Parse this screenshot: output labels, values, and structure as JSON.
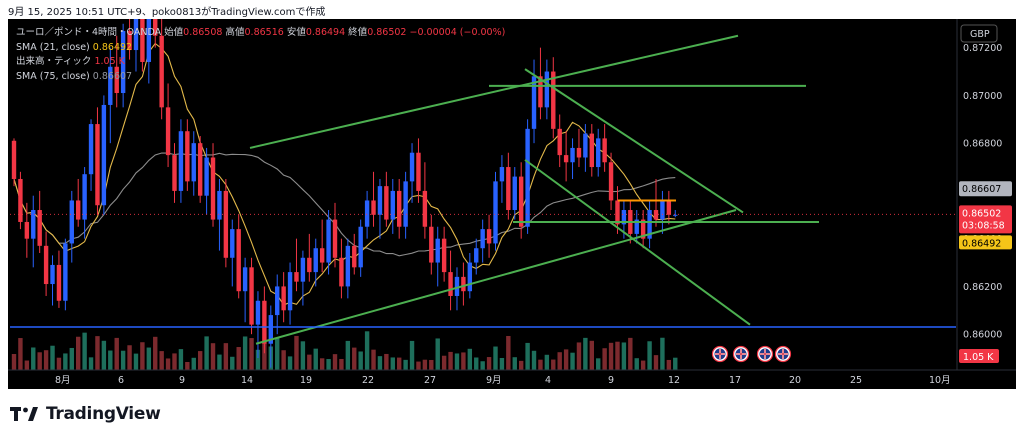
{
  "caption": "9月 15, 2025 10:51 UTC+9、poko0813がTradingView.comで作成",
  "legend": {
    "symbol": "ユーロ／ポンド・4時間・OANDA",
    "open_label": "始値",
    "open_value": "0.86508",
    "high_label": "高値",
    "high_value": "0.86516",
    "low_label": "安値",
    "low_value": "0.86494",
    "close_label": "終値",
    "close_value": "0.86502",
    "change": "−0.00004 (−0.00%)",
    "sma21_label": "SMA (21, close)",
    "sma21_value": "0.86492",
    "volume_label": "出来高・ティック",
    "volume_value": "1.05 K",
    "sma75_label": "SMA (75, close)",
    "sma75_value": "0.86607"
  },
  "currency_badge": "GBP",
  "price_tags": {
    "sma75": "0.86607",
    "last_price": "0.86502",
    "countdown": "03:08:58",
    "sma21": "0.86492",
    "volume": "1.05 K"
  },
  "footer_logo_text": "TradingView",
  "colors": {
    "bull": "#2962ff",
    "bear": "#f23645",
    "sma21": "#e3b94a",
    "sma75": "#8c8c8c",
    "trendline": "#4caf50",
    "support": "#2962ff",
    "orange_level": "#ff9800",
    "background": "#000000"
  },
  "chart_data": {
    "type": "candlestick",
    "symbol": "ユーロ／ポンド",
    "timeframe": "4時間",
    "y_axis": {
      "ticks": [
        "0.87200",
        "0.87000",
        "0.86800",
        "0.86600",
        "0.86400",
        "0.86200",
        "0.86000"
      ],
      "ylim": [
        0.8585,
        0.8732
      ]
    },
    "x_axis": {
      "ticks": [
        "8月",
        "6",
        "9",
        "14",
        "19",
        "22",
        "27",
        "9月",
        "4",
        "9",
        "12",
        "17",
        "20",
        "25",
        "10月"
      ]
    },
    "candles": [
      [
        0.8681,
        0.8682,
        0.8662,
        0.8665
      ],
      [
        0.8665,
        0.8668,
        0.8644,
        0.8647
      ],
      [
        0.8647,
        0.8655,
        0.8632,
        0.864
      ],
      [
        0.864,
        0.8658,
        0.8628,
        0.8652
      ],
      [
        0.8652,
        0.866,
        0.8634,
        0.8637
      ],
      [
        0.8637,
        0.8643,
        0.8616,
        0.8621
      ],
      [
        0.8621,
        0.8633,
        0.8612,
        0.8629
      ],
      [
        0.8629,
        0.8635,
        0.8611,
        0.8614
      ],
      [
        0.8614,
        0.864,
        0.861,
        0.8638
      ],
      [
        0.8638,
        0.866,
        0.863,
        0.8656
      ],
      [
        0.8656,
        0.8665,
        0.8645,
        0.8648
      ],
      [
        0.8648,
        0.867,
        0.864,
        0.8667
      ],
      [
        0.8667,
        0.869,
        0.866,
        0.8688
      ],
      [
        0.8688,
        0.8695,
        0.865,
        0.8654
      ],
      [
        0.8654,
        0.87,
        0.865,
        0.8696
      ],
      [
        0.8696,
        0.872,
        0.868,
        0.8712
      ],
      [
        0.8712,
        0.8725,
        0.8695,
        0.8701
      ],
      [
        0.8701,
        0.873,
        0.8695,
        0.8727
      ],
      [
        0.8727,
        0.874,
        0.8715,
        0.8719
      ],
      [
        0.8719,
        0.8745,
        0.871,
        0.874
      ],
      [
        0.874,
        0.875,
        0.871,
        0.8714
      ],
      [
        0.8714,
        0.874,
        0.8705,
        0.8736
      ],
      [
        0.8736,
        0.875,
        0.872,
        0.8725
      ],
      [
        0.8725,
        0.874,
        0.869,
        0.8695
      ],
      [
        0.8695,
        0.8705,
        0.867,
        0.8675
      ],
      [
        0.8675,
        0.868,
        0.8655,
        0.866
      ],
      [
        0.866,
        0.869,
        0.8655,
        0.8685
      ],
      [
        0.8685,
        0.869,
        0.866,
        0.8664
      ],
      [
        0.8664,
        0.8685,
        0.8658,
        0.868
      ],
      [
        0.868,
        0.8683,
        0.8655,
        0.8658
      ],
      [
        0.8658,
        0.8678,
        0.865,
        0.8674
      ],
      [
        0.8674,
        0.868,
        0.8645,
        0.8648
      ],
      [
        0.8648,
        0.8665,
        0.8635,
        0.866
      ],
      [
        0.866,
        0.8665,
        0.8628,
        0.8632
      ],
      [
        0.8632,
        0.8648,
        0.862,
        0.8644
      ],
      [
        0.8644,
        0.865,
        0.8615,
        0.8618
      ],
      [
        0.8618,
        0.8632,
        0.8605,
        0.8628
      ],
      [
        0.8628,
        0.8632,
        0.86,
        0.8604
      ],
      [
        0.8604,
        0.8618,
        0.859,
        0.8614
      ],
      [
        0.8614,
        0.862,
        0.8592,
        0.8596
      ],
      [
        0.8596,
        0.8612,
        0.8586,
        0.8608
      ],
      [
        0.8608,
        0.8625,
        0.86,
        0.862
      ],
      [
        0.862,
        0.8626,
        0.8605,
        0.861
      ],
      [
        0.861,
        0.863,
        0.8604,
        0.8626
      ],
      [
        0.8626,
        0.864,
        0.8618,
        0.8622
      ],
      [
        0.8622,
        0.8635,
        0.8612,
        0.8632
      ],
      [
        0.8632,
        0.8642,
        0.8622,
        0.8626
      ],
      [
        0.8626,
        0.864,
        0.862,
        0.8636
      ],
      [
        0.8636,
        0.8648,
        0.8626,
        0.863
      ],
      [
        0.863,
        0.8652,
        0.8625,
        0.8648
      ],
      [
        0.8648,
        0.8655,
        0.8628,
        0.8632
      ],
      [
        0.8632,
        0.864,
        0.8615,
        0.862
      ],
      [
        0.862,
        0.864,
        0.8615,
        0.8637
      ],
      [
        0.8637,
        0.8642,
        0.8625,
        0.8628
      ],
      [
        0.8628,
        0.8648,
        0.8624,
        0.8645
      ],
      [
        0.8645,
        0.866,
        0.864,
        0.8656
      ],
      [
        0.8656,
        0.8668,
        0.8645,
        0.865
      ],
      [
        0.865,
        0.8665,
        0.864,
        0.8662
      ],
      [
        0.8662,
        0.8668,
        0.8645,
        0.8648
      ],
      [
        0.8648,
        0.8665,
        0.8642,
        0.866
      ],
      [
        0.866,
        0.8665,
        0.864,
        0.8645
      ],
      [
        0.8645,
        0.8668,
        0.864,
        0.8664
      ],
      [
        0.8664,
        0.868,
        0.8655,
        0.8676
      ],
      [
        0.8676,
        0.8682,
        0.8655,
        0.866
      ],
      [
        0.866,
        0.8672,
        0.864,
        0.8645
      ],
      [
        0.8645,
        0.865,
        0.8625,
        0.863
      ],
      [
        0.863,
        0.8645,
        0.862,
        0.864
      ],
      [
        0.864,
        0.8645,
        0.8622,
        0.8626
      ],
      [
        0.8626,
        0.8635,
        0.861,
        0.8616
      ],
      [
        0.8616,
        0.8628,
        0.861,
        0.8624
      ],
      [
        0.8624,
        0.863,
        0.8612,
        0.8618
      ],
      [
        0.8618,
        0.8634,
        0.8615,
        0.863
      ],
      [
        0.863,
        0.864,
        0.8625,
        0.8636
      ],
      [
        0.8636,
        0.8648,
        0.863,
        0.8644
      ],
      [
        0.8644,
        0.865,
        0.8632,
        0.8638
      ],
      [
        0.8638,
        0.8668,
        0.8635,
        0.8664
      ],
      [
        0.8664,
        0.8675,
        0.8655,
        0.867
      ],
      [
        0.867,
        0.8676,
        0.8648,
        0.8652
      ],
      [
        0.8652,
        0.867,
        0.8648,
        0.8666
      ],
      [
        0.8666,
        0.8672,
        0.864,
        0.8645
      ],
      [
        0.8645,
        0.869,
        0.8642,
        0.8686
      ],
      [
        0.8686,
        0.8715,
        0.868,
        0.8708
      ],
      [
        0.8708,
        0.872,
        0.869,
        0.8695
      ],
      [
        0.8695,
        0.8715,
        0.869,
        0.871
      ],
      [
        0.871,
        0.8716,
        0.8682,
        0.8686
      ],
      [
        0.8686,
        0.8692,
        0.867,
        0.8675
      ],
      [
        0.8675,
        0.8685,
        0.8664,
        0.8672
      ],
      [
        0.8672,
        0.8682,
        0.8665,
        0.8678
      ],
      [
        0.8678,
        0.8686,
        0.867,
        0.8674
      ],
      [
        0.8674,
        0.8688,
        0.8668,
        0.8684
      ],
      [
        0.8684,
        0.8688,
        0.8666,
        0.867
      ],
      [
        0.867,
        0.8686,
        0.8666,
        0.8682
      ],
      [
        0.8682,
        0.8688,
        0.8668,
        0.8672
      ],
      [
        0.8672,
        0.8676,
        0.8652,
        0.8656
      ],
      [
        0.8656,
        0.8662,
        0.8642,
        0.8646
      ],
      [
        0.8646,
        0.8656,
        0.864,
        0.8652
      ],
      [
        0.8652,
        0.8656,
        0.8638,
        0.8642
      ],
      [
        0.8642,
        0.8652,
        0.8638,
        0.8648
      ],
      [
        0.8648,
        0.8652,
        0.8636,
        0.864
      ],
      [
        0.864,
        0.8656,
        0.8636,
        0.8652
      ],
      [
        0.8652,
        0.8665,
        0.8645,
        0.8648
      ],
      [
        0.8648,
        0.866,
        0.8642,
        0.8656
      ],
      [
        0.8656,
        0.866,
        0.8646,
        0.865
      ],
      [
        0.865,
        0.8652,
        0.8649,
        0.865
      ]
    ],
    "sma21_value": 0.86492,
    "sma75_value": 0.86607,
    "last_close": 0.86502,
    "horizontal_levels": [
      0.8704,
      0.8647,
      0.8603,
      0.8656
    ],
    "trendlines": [
      {
        "name": "upper-channel",
        "from": [
          0,
          0.8678
        ],
        "to": [
          1,
          0.8725
        ]
      },
      {
        "name": "lower-channel",
        "from": [
          0,
          0.8596
        ],
        "to": [
          1,
          0.8652
        ]
      },
      {
        "name": "descending-top",
        "from": [
          0,
          0.8711
        ],
        "to": [
          1,
          0.8651
        ]
      },
      {
        "name": "descending-bottom",
        "from": [
          0,
          0.8673
        ],
        "to": [
          1,
          0.8604
        ]
      }
    ],
    "volume_label": "1.05 K",
    "event_markers": 4
  }
}
